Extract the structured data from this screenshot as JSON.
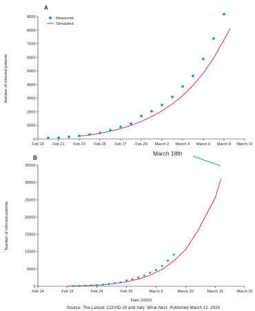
{
  "chart_data": [
    {
      "type": "scatter",
      "panel_label": "A",
      "xlabel": "",
      "ylabel": "Number of infected patients",
      "ylim": [
        0,
        9000
      ],
      "y_ticks": [
        0,
        1000,
        2000,
        3000,
        4000,
        5000,
        6000,
        7000,
        8000,
        9000
      ],
      "x_ticks": [
        {
          "label": "Feb 19",
          "day": 0
        },
        {
          "label": "Feb 21",
          "day": 2
        },
        {
          "label": "Feb 23",
          "day": 4
        },
        {
          "label": "Feb 25",
          "day": 6
        },
        {
          "label": "Feb 27",
          "day": 8
        },
        {
          "label": "Feb 29",
          "day": 10
        },
        {
          "label": "March 2",
          "day": 12
        },
        {
          "label": "March 4",
          "day": 14
        },
        {
          "label": "March 6",
          "day": 16
        },
        {
          "label": "March 8",
          "day": 18
        },
        {
          "label": "March 10",
          "day": 20
        }
      ],
      "xlim_days": [
        0,
        20
      ],
      "legend": {
        "position": "top-left",
        "entries": [
          "Measured",
          "Simulated"
        ]
      },
      "series": [
        {
          "name": "Measured",
          "kind": "points",
          "color": "#1a9fb5",
          "x": [
            1,
            2,
            3,
            4,
            5,
            6,
            7,
            8,
            9,
            10,
            11,
            12,
            13,
            14,
            15,
            16,
            17,
            18
          ],
          "y": [
            80,
            90,
            150,
            230,
            320,
            450,
            650,
            890,
            1130,
            1690,
            2040,
            2500,
            3090,
            3860,
            4640,
            5880,
            7380,
            9170
          ]
        },
        {
          "name": "Simulated",
          "kind": "line",
          "color": "#d81e3a",
          "x": [
            4,
            5,
            6,
            7,
            8,
            9,
            10,
            11,
            12,
            13,
            14,
            15,
            16,
            17,
            18,
            18.6
          ],
          "y": [
            210,
            300,
            420,
            570,
            760,
            1000,
            1290,
            1640,
            2060,
            2570,
            3180,
            3930,
            4840,
            5940,
            7280,
            8100
          ]
        }
      ]
    },
    {
      "type": "scatter",
      "panel_label": "B",
      "xlabel": "Date (2020)",
      "ylabel": "Number of infected patients",
      "ylim": [
        0,
        35000
      ],
      "y_ticks": [
        0,
        5000,
        10000,
        15000,
        20000,
        25000,
        30000,
        35000
      ],
      "x_ticks": [
        {
          "label": "Feb 14",
          "day": -5
        },
        {
          "label": "Feb 19",
          "day": 0
        },
        {
          "label": "Feb 24",
          "day": 5
        },
        {
          "label": "Feb 29",
          "day": 10
        },
        {
          "label": "March 5",
          "day": 15
        },
        {
          "label": "March 10",
          "day": 20
        },
        {
          "label": "March 15",
          "day": 25
        },
        {
          "label": "March 20",
          "day": 30
        }
      ],
      "xlim_days": [
        -5,
        30
      ],
      "series": [
        {
          "name": "Measured",
          "kind": "points",
          "color": "#1a9fb5",
          "x": [
            1,
            2,
            3,
            4,
            5,
            6,
            7,
            8,
            9,
            10,
            11,
            12,
            13,
            14,
            15,
            16,
            17,
            18
          ],
          "y": [
            80,
            90,
            150,
            230,
            320,
            450,
            650,
            890,
            1130,
            1690,
            2040,
            2500,
            3090,
            3860,
            4640,
            5880,
            7380,
            9170
          ]
        },
        {
          "name": "Simulated",
          "kind": "line",
          "color": "#d81e3a",
          "x": [
            0,
            4,
            6,
            8,
            10,
            12,
            14,
            16,
            18,
            20,
            22,
            24,
            25,
            26
          ],
          "y": [
            40,
            210,
            420,
            760,
            1290,
            2060,
            3180,
            4840,
            7280,
            10600,
            15800,
            22300,
            25500,
            31000
          ]
        }
      ]
    }
  ],
  "annotation": {
    "text": "March 18th",
    "color": "#2a8fc7"
  },
  "source_text": "Source: The Lancet: COVID-19 and Italy: What Next. Published March 12. 2020"
}
